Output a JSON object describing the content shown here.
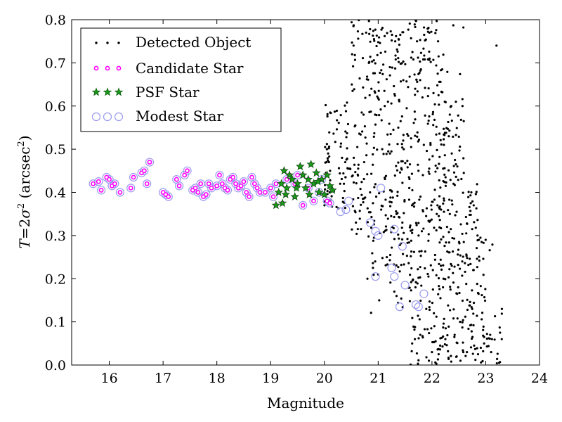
{
  "chart_data": {
    "type": "scatter",
    "xlabel": "Magnitude",
    "ylabel": "T = 2σ² (arcsec²)",
    "ylabel_parts": {
      "lhs": "T",
      "eq": "=",
      "two": "2",
      "sigma": "σ",
      "sq": "2",
      "unit": " (arcsec",
      "unit_sq": "2",
      "close": ")"
    },
    "xlim": [
      15.3,
      24
    ],
    "ylim": [
      0,
      0.8
    ],
    "x_ticks": [
      16,
      17,
      18,
      19,
      20,
      21,
      22,
      23,
      24
    ],
    "y_ticks": [
      0.0,
      0.1,
      0.2,
      0.3,
      0.4,
      0.5,
      0.6,
      0.7,
      0.8
    ],
    "x_tick_labels": [
      "16",
      "17",
      "18",
      "19",
      "20",
      "21",
      "22",
      "23",
      "24"
    ],
    "y_tick_labels": [
      "0.0",
      "0.1",
      "0.2",
      "0.3",
      "0.4",
      "0.5",
      "0.6",
      "0.7",
      "0.8"
    ],
    "grid": false,
    "legend_position": "upper-left",
    "colors": {
      "detected": "#000000",
      "candidate": "#ff00ff",
      "psf_face": "#1a9a1a",
      "psf_edge": "#0a5a0a",
      "modest": "#9a9aee"
    },
    "series": [
      {
        "name": "Detected Object",
        "marker": "dot",
        "color": "#000000",
        "generated_cloud": {
          "x_range": [
            20.0,
            23.3
          ],
          "y_range": [
            0.0,
            0.8
          ],
          "count": 900
        },
        "points": [
          [
            20.8,
            0.2
          ],
          [
            21.0,
            0.21
          ],
          [
            21.3,
            0.17
          ],
          [
            22.0,
            0.03
          ],
          [
            23.1,
            0.03
          ],
          [
            23.3,
            0.13
          ],
          [
            23.2,
            0.74
          ]
        ]
      },
      {
        "name": "Candidate Star",
        "marker": "small-circle",
        "color": "#ff00ff",
        "points": [
          [
            15.7,
            0.42
          ],
          [
            15.8,
            0.425
          ],
          [
            15.85,
            0.405
          ],
          [
            15.95,
            0.435
          ],
          [
            16.0,
            0.43
          ],
          [
            16.05,
            0.415
          ],
          [
            16.1,
            0.42
          ],
          [
            16.2,
            0.4
          ],
          [
            16.4,
            0.41
          ],
          [
            16.45,
            0.435
          ],
          [
            16.6,
            0.445
          ],
          [
            16.65,
            0.45
          ],
          [
            16.7,
            0.42
          ],
          [
            16.75,
            0.47
          ],
          [
            17.0,
            0.4
          ],
          [
            17.05,
            0.395
          ],
          [
            17.1,
            0.39
          ],
          [
            17.25,
            0.43
          ],
          [
            17.3,
            0.415
          ],
          [
            17.4,
            0.44
          ],
          [
            17.45,
            0.45
          ],
          [
            17.55,
            0.405
          ],
          [
            17.6,
            0.41
          ],
          [
            17.65,
            0.4
          ],
          [
            17.7,
            0.42
          ],
          [
            17.75,
            0.39
          ],
          [
            17.8,
            0.395
          ],
          [
            17.85,
            0.42
          ],
          [
            17.9,
            0.41
          ],
          [
            18.0,
            0.415
          ],
          [
            18.05,
            0.44
          ],
          [
            18.1,
            0.42
          ],
          [
            18.15,
            0.41
          ],
          [
            18.2,
            0.405
          ],
          [
            18.25,
            0.43
          ],
          [
            18.3,
            0.435
          ],
          [
            18.35,
            0.42
          ],
          [
            18.4,
            0.41
          ],
          [
            18.45,
            0.415
          ],
          [
            18.5,
            0.425
          ],
          [
            18.55,
            0.4
          ],
          [
            18.6,
            0.39
          ],
          [
            18.65,
            0.435
          ],
          [
            18.7,
            0.42
          ],
          [
            18.75,
            0.41
          ],
          [
            18.8,
            0.4
          ],
          [
            18.9,
            0.4
          ],
          [
            19.0,
            0.41
          ],
          [
            19.05,
            0.39
          ],
          [
            19.1,
            0.42
          ],
          [
            19.3,
            0.43
          ],
          [
            19.45,
            0.42
          ],
          [
            19.5,
            0.44
          ],
          [
            19.6,
            0.37
          ],
          [
            19.7,
            0.41
          ],
          [
            19.8,
            0.38
          ],
          [
            19.9,
            0.4
          ],
          [
            19.95,
            0.43
          ],
          [
            20.05,
            0.38
          ],
          [
            20.1,
            0.375
          ]
        ]
      },
      {
        "name": "PSF Star",
        "marker": "star",
        "color": "#1a9a1a",
        "points": [
          [
            19.1,
            0.37
          ],
          [
            19.15,
            0.4
          ],
          [
            19.2,
            0.42
          ],
          [
            19.22,
            0.375
          ],
          [
            19.25,
            0.45
          ],
          [
            19.3,
            0.41
          ],
          [
            19.35,
            0.44
          ],
          [
            19.4,
            0.43
          ],
          [
            19.45,
            0.39
          ],
          [
            19.5,
            0.42
          ],
          [
            19.55,
            0.46
          ],
          [
            19.6,
            0.44
          ],
          [
            19.65,
            0.41
          ],
          [
            19.7,
            0.43
          ],
          [
            19.75,
            0.465
          ],
          [
            19.8,
            0.42
          ],
          [
            19.85,
            0.445
          ],
          [
            19.9,
            0.4
          ],
          [
            19.95,
            0.43
          ],
          [
            20.0,
            0.395
          ],
          [
            20.05,
            0.44
          ],
          [
            20.1,
            0.415
          ],
          [
            20.15,
            0.405
          ],
          [
            19.28,
            0.395
          ],
          [
            19.48,
            0.41
          ],
          [
            19.72,
            0.395
          ],
          [
            19.88,
            0.425
          ]
        ]
      },
      {
        "name": "Modest Star",
        "marker": "hollow-circle",
        "color": "#9a9aee",
        "points": [
          [
            20.3,
            0.355
          ],
          [
            20.4,
            0.36
          ],
          [
            20.45,
            0.38
          ],
          [
            20.85,
            0.33
          ],
          [
            20.95,
            0.31
          ],
          [
            21.0,
            0.3
          ],
          [
            21.3,
            0.315
          ],
          [
            21.05,
            0.41
          ],
          [
            21.45,
            0.275
          ],
          [
            21.25,
            0.225
          ],
          [
            21.3,
            0.205
          ],
          [
            20.95,
            0.205
          ],
          [
            21.5,
            0.185
          ],
          [
            21.4,
            0.135
          ],
          [
            21.7,
            0.14
          ],
          [
            21.75,
            0.135
          ],
          [
            21.85,
            0.165
          ]
        ]
      }
    ]
  }
}
